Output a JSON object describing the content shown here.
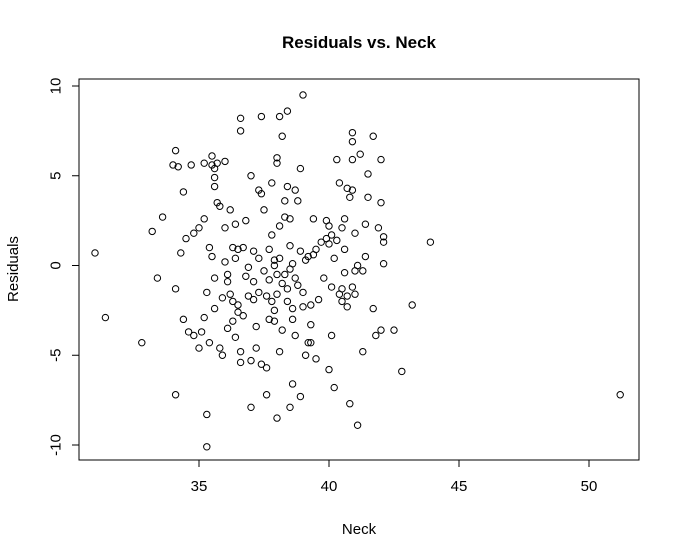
{
  "chart_data": {
    "type": "scatter",
    "title": "Residuals vs. Neck",
    "xlabel": "Neck",
    "ylabel": "Residuals",
    "xlim": [
      30,
      52
    ],
    "ylim": [
      -11,
      10.5
    ],
    "x_ticks": [
      35,
      40,
      45,
      50
    ],
    "y_ticks": [
      -10,
      -5,
      0,
      5,
      10
    ],
    "x_tick_labels": [
      "35",
      "40",
      "45",
      "50"
    ],
    "y_tick_labels": [
      "-10",
      "-5",
      "0",
      "5",
      "10"
    ],
    "grid": false,
    "legend": "none",
    "point_style": "open-circle",
    "points": [
      [
        31.0,
        0.7
      ],
      [
        31.4,
        -2.9
      ],
      [
        32.8,
        -4.3
      ],
      [
        33.2,
        1.9
      ],
      [
        33.4,
        -0.7
      ],
      [
        33.6,
        2.7
      ],
      [
        34.0,
        5.6
      ],
      [
        34.1,
        6.4
      ],
      [
        34.1,
        -1.3
      ],
      [
        34.1,
        -7.2
      ],
      [
        34.2,
        5.5
      ],
      [
        34.3,
        0.7
      ],
      [
        34.4,
        -3.0
      ],
      [
        34.4,
        4.1
      ],
      [
        34.5,
        1.5
      ],
      [
        34.6,
        -3.7
      ],
      [
        34.7,
        5.6
      ],
      [
        34.8,
        -3.9
      ],
      [
        34.8,
        1.8
      ],
      [
        35.0,
        2.1
      ],
      [
        35.0,
        -4.6
      ],
      [
        35.1,
        -3.7
      ],
      [
        35.2,
        2.6
      ],
      [
        35.2,
        -2.9
      ],
      [
        35.2,
        5.7
      ],
      [
        35.3,
        -1.5
      ],
      [
        35.3,
        -8.3
      ],
      [
        35.3,
        -10.1
      ],
      [
        35.4,
        1.0
      ],
      [
        35.4,
        -4.3
      ],
      [
        35.5,
        0.5
      ],
      [
        35.5,
        5.6
      ],
      [
        35.5,
        6.1
      ],
      [
        35.6,
        5.4
      ],
      [
        35.6,
        4.9
      ],
      [
        35.6,
        4.4
      ],
      [
        35.6,
        -0.7
      ],
      [
        35.6,
        -2.4
      ],
      [
        35.7,
        3.5
      ],
      [
        35.7,
        5.7
      ],
      [
        35.8,
        3.3
      ],
      [
        35.8,
        -4.6
      ],
      [
        35.9,
        -1.8
      ],
      [
        35.9,
        -5.0
      ],
      [
        36.0,
        0.2
      ],
      [
        36.0,
        2.1
      ],
      [
        36.0,
        5.8
      ],
      [
        36.1,
        -0.5
      ],
      [
        36.1,
        -0.9
      ],
      [
        36.1,
        -3.5
      ],
      [
        36.2,
        -1.6
      ],
      [
        36.2,
        3.1
      ],
      [
        36.3,
        -2.0
      ],
      [
        36.3,
        1.0
      ],
      [
        36.3,
        -3.1
      ],
      [
        36.4,
        -4.0
      ],
      [
        36.4,
        0.4
      ],
      [
        36.4,
        2.3
      ],
      [
        36.5,
        -2.2
      ],
      [
        36.5,
        -2.6
      ],
      [
        36.5,
        0.9
      ],
      [
        36.6,
        8.2
      ],
      [
        36.6,
        7.5
      ],
      [
        36.6,
        -4.8
      ],
      [
        36.6,
        -5.4
      ],
      [
        36.7,
        -2.8
      ],
      [
        36.7,
        1.0
      ],
      [
        36.8,
        -0.6
      ],
      [
        36.8,
        2.5
      ],
      [
        36.9,
        -0.1
      ],
      [
        36.9,
        -1.7
      ],
      [
        37.0,
        5.0
      ],
      [
        37.0,
        -5.3
      ],
      [
        37.0,
        -7.9
      ],
      [
        37.1,
        -0.9
      ],
      [
        37.1,
        -1.9
      ],
      [
        37.1,
        0.8
      ],
      [
        37.2,
        -3.4
      ],
      [
        37.2,
        -4.6
      ],
      [
        37.3,
        -1.5
      ],
      [
        37.3,
        0.4
      ],
      [
        37.3,
        4.2
      ],
      [
        37.4,
        -5.5
      ],
      [
        37.4,
        8.3
      ],
      [
        37.4,
        4.0
      ],
      [
        37.5,
        3.1
      ],
      [
        37.5,
        -0.3
      ],
      [
        37.6,
        -5.7
      ],
      [
        37.6,
        -1.7
      ],
      [
        37.6,
        -7.2
      ],
      [
        37.7,
        0.9
      ],
      [
        37.7,
        -3.0
      ],
      [
        37.7,
        -0.8
      ],
      [
        37.8,
        1.7
      ],
      [
        37.8,
        4.6
      ],
      [
        37.8,
        -2.0
      ],
      [
        37.9,
        -2.5
      ],
      [
        37.9,
        -3.1
      ],
      [
        37.9,
        0.0
      ],
      [
        37.9,
        0.3
      ],
      [
        38.0,
        5.7
      ],
      [
        38.0,
        6.0
      ],
      [
        38.0,
        -0.5
      ],
      [
        38.0,
        -1.6
      ],
      [
        38.0,
        -8.5
      ],
      [
        38.1,
        8.3
      ],
      [
        38.1,
        2.2
      ],
      [
        38.1,
        -4.8
      ],
      [
        38.1,
        0.4
      ],
      [
        38.2,
        7.2
      ],
      [
        38.2,
        -1.0
      ],
      [
        38.2,
        -3.6
      ],
      [
        38.3,
        -0.5
      ],
      [
        38.3,
        2.7
      ],
      [
        38.3,
        3.6
      ],
      [
        38.4,
        8.6
      ],
      [
        38.4,
        4.4
      ],
      [
        38.4,
        -1.3
      ],
      [
        38.4,
        -2.0
      ],
      [
        38.5,
        -7.9
      ],
      [
        38.5,
        -0.2
      ],
      [
        38.5,
        2.6
      ],
      [
        38.5,
        1.1
      ],
      [
        38.6,
        -6.6
      ],
      [
        38.6,
        -3.0
      ],
      [
        38.6,
        0.1
      ],
      [
        38.6,
        -2.4
      ],
      [
        38.7,
        -3.9
      ],
      [
        38.7,
        4.2
      ],
      [
        38.7,
        -0.7
      ],
      [
        38.8,
        3.6
      ],
      [
        38.8,
        -1.1
      ],
      [
        38.9,
        5.4
      ],
      [
        38.9,
        -7.3
      ],
      [
        38.9,
        0.8
      ],
      [
        39.0,
        9.5
      ],
      [
        39.0,
        -2.3
      ],
      [
        39.0,
        -1.5
      ],
      [
        39.1,
        -5.0
      ],
      [
        39.1,
        0.3
      ],
      [
        39.2,
        -4.3
      ],
      [
        39.2,
        0.5
      ],
      [
        39.3,
        -2.2
      ],
      [
        39.3,
        -3.3
      ],
      [
        39.3,
        -4.3
      ],
      [
        39.4,
        2.6
      ],
      [
        39.4,
        0.6
      ],
      [
        39.5,
        -5.2
      ],
      [
        39.5,
        0.9
      ],
      [
        39.6,
        -1.9
      ],
      [
        39.7,
        1.3
      ],
      [
        39.8,
        -0.7
      ],
      [
        39.9,
        1.5
      ],
      [
        39.9,
        2.5
      ],
      [
        40.0,
        -5.8
      ],
      [
        40.0,
        2.2
      ],
      [
        40.0,
        1.2
      ],
      [
        40.1,
        1.7
      ],
      [
        40.1,
        -1.2
      ],
      [
        40.1,
        -3.9
      ],
      [
        40.2,
        -6.8
      ],
      [
        40.2,
        0.4
      ],
      [
        40.3,
        5.9
      ],
      [
        40.3,
        1.4
      ],
      [
        40.4,
        4.6
      ],
      [
        40.4,
        -1.6
      ],
      [
        40.5,
        2.1
      ],
      [
        40.5,
        -1.3
      ],
      [
        40.5,
        -2.0
      ],
      [
        40.6,
        0.9
      ],
      [
        40.6,
        2.6
      ],
      [
        40.6,
        -0.4
      ],
      [
        40.7,
        4.3
      ],
      [
        40.7,
        -2.3
      ],
      [
        40.7,
        -1.7
      ],
      [
        40.8,
        3.8
      ],
      [
        40.8,
        -7.7
      ],
      [
        40.9,
        4.2
      ],
      [
        40.9,
        6.9
      ],
      [
        40.9,
        7.4
      ],
      [
        40.9,
        5.9
      ],
      [
        40.9,
        -1.2
      ],
      [
        41.0,
        1.8
      ],
      [
        41.0,
        -1.6
      ],
      [
        41.0,
        -0.3
      ],
      [
        41.1,
        -8.9
      ],
      [
        41.1,
        0.0
      ],
      [
        41.2,
        6.2
      ],
      [
        41.3,
        -0.3
      ],
      [
        41.3,
        -4.8
      ],
      [
        41.4,
        2.3
      ],
      [
        41.4,
        0.5
      ],
      [
        41.5,
        5.1
      ],
      [
        41.5,
        3.8
      ],
      [
        41.7,
        7.2
      ],
      [
        41.7,
        -2.4
      ],
      [
        41.8,
        -3.9
      ],
      [
        41.9,
        2.1
      ],
      [
        42.0,
        3.5
      ],
      [
        42.0,
        5.9
      ],
      [
        42.0,
        -3.6
      ],
      [
        42.1,
        1.3
      ],
      [
        42.1,
        1.6
      ],
      [
        42.1,
        0.1
      ],
      [
        42.5,
        -3.6
      ],
      [
        42.8,
        -5.9
      ],
      [
        43.2,
        -2.2
      ],
      [
        43.9,
        1.3
      ],
      [
        51.2,
        -7.2
      ]
    ]
  }
}
